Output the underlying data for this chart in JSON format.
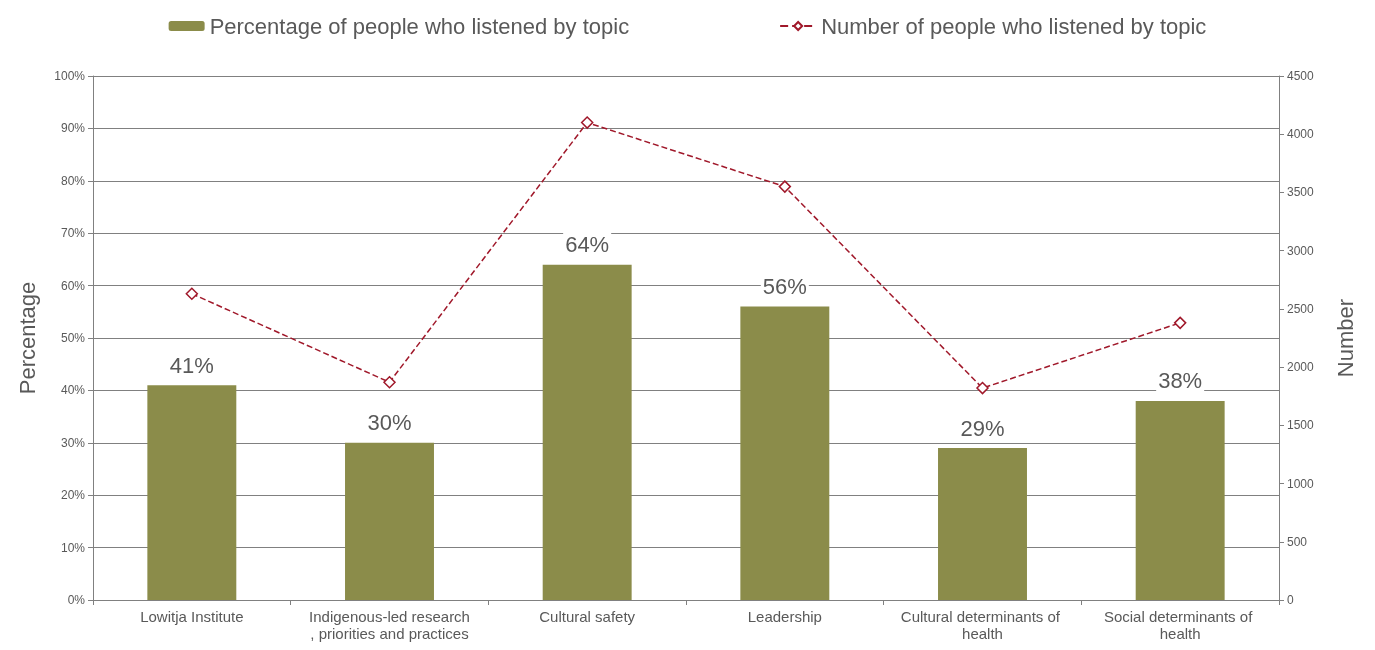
{
  "chart_data": {
    "type": "bar",
    "ylabel": "Percentage",
    "y2label": "Number",
    "categories": [
      "Lowitja Institute",
      "Indigenous-led research, priorities and practices",
      "Cultural safety",
      "Leadership",
      "Cultural determinants of health",
      "Social determinants of health"
    ],
    "series": [
      {
        "name": "Percentage of people who listened by topic",
        "color": "#8b8c4a",
        "values": [
          41,
          30,
          64,
          56,
          29,
          38
        ],
        "value_labels": [
          "41%",
          "30%",
          "64%",
          "56%",
          "29%",
          "38%"
        ]
      },
      {
        "name": "Number of people who listened by topic",
        "type": "line",
        "axis": "y2",
        "color": "#a0182a",
        "values": [
          2630,
          1870,
          4100,
          3550,
          1820,
          2380
        ],
        "marker": "diamond",
        "line_style": "dashed"
      }
    ],
    "ylim": [
      0,
      100
    ],
    "yticks": [
      {
        "value": 0,
        "label": "0%"
      },
      {
        "value": 10,
        "label": "10%"
      },
      {
        "value": 20,
        "label": "20%"
      },
      {
        "value": 30,
        "label": "30%"
      },
      {
        "value": 40,
        "label": "40%"
      },
      {
        "value": 50,
        "label": "50%"
      },
      {
        "value": 60,
        "label": "60%"
      },
      {
        "value": 70,
        "label": "70%"
      },
      {
        "value": 80,
        "label": "80%"
      },
      {
        "value": 90,
        "label": "90%"
      },
      {
        "value": 100,
        "label": "100%"
      }
    ],
    "y2lim": [
      0,
      4500
    ],
    "y2ticks": [
      0,
      500,
      1000,
      1500,
      2000,
      2500,
      3000,
      3500,
      4000,
      4500
    ],
    "grid": "y",
    "legend": "top"
  }
}
